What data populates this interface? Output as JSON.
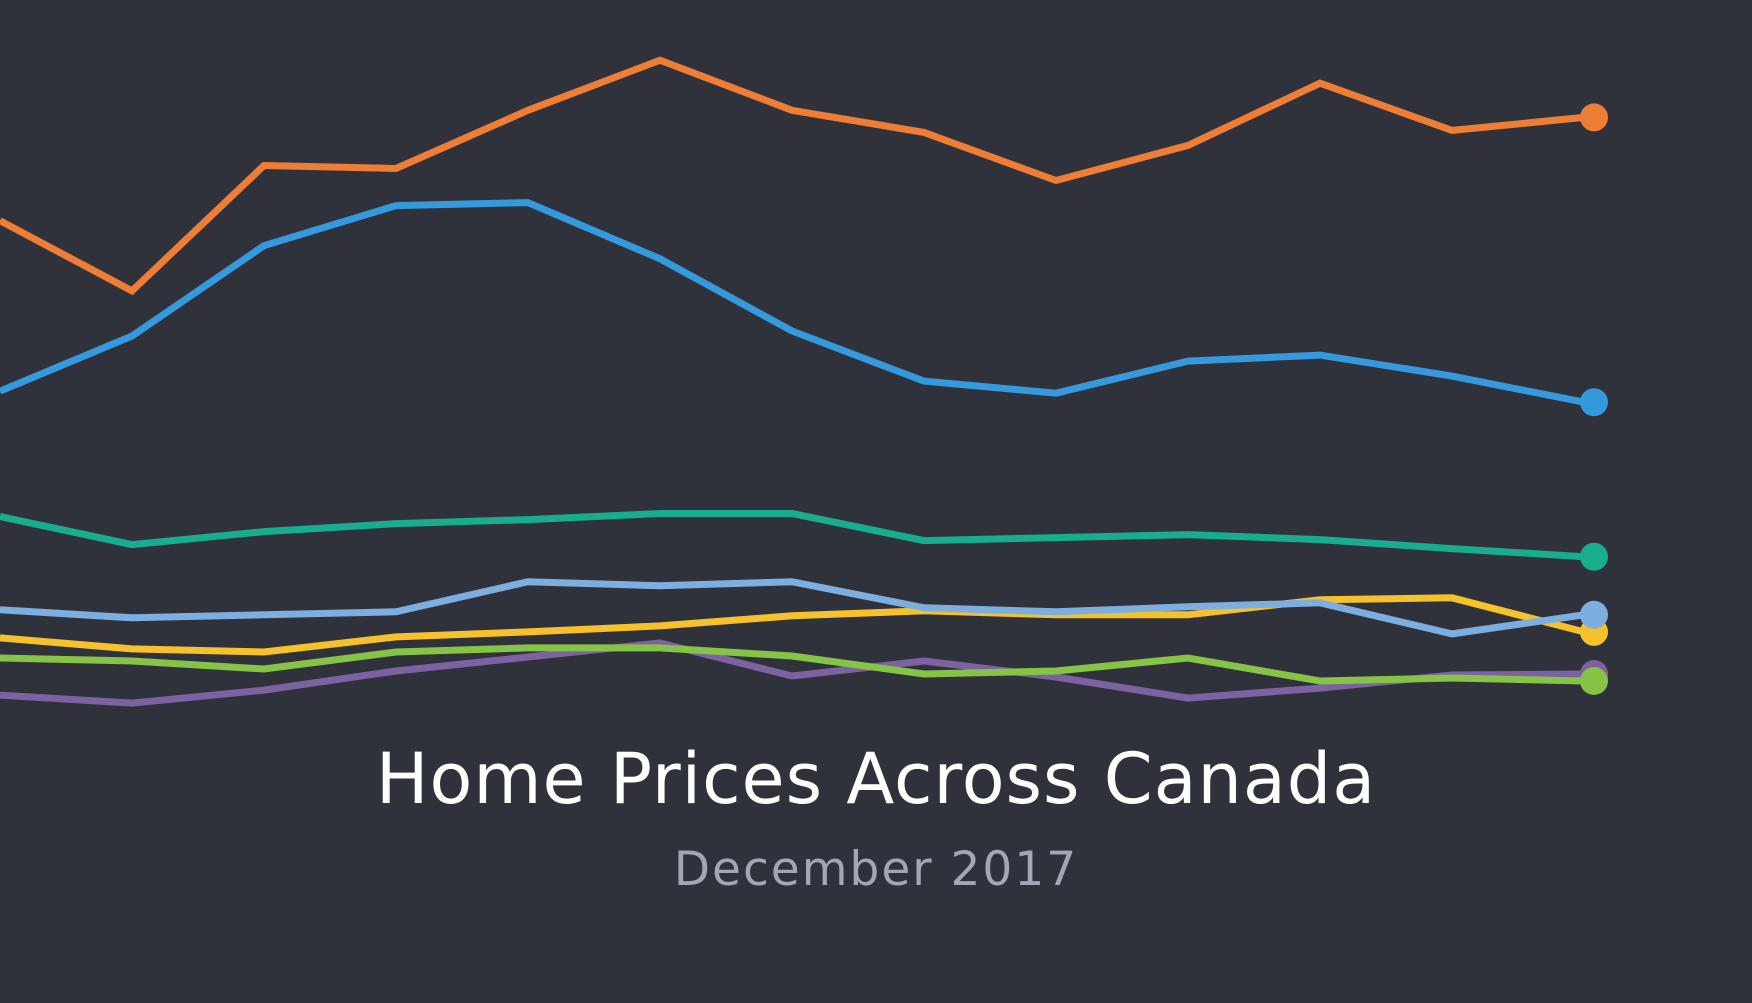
{
  "chart_data": {
    "type": "line",
    "title": "Home Prices Across Canada",
    "subtitle": "December 2017",
    "xlabel": "",
    "ylabel": "",
    "grid": false,
    "legend": "none",
    "x": [
      0,
      1,
      2,
      3,
      4,
      5,
      6,
      7,
      8,
      9,
      10,
      11,
      12
    ],
    "ylim": [
      0,
      100
    ],
    "series": [
      {
        "color": "#ee7d35",
        "values": [
          78,
          71,
          83.5,
          83.2,
          89,
          94,
          89,
          86.8,
          82,
          85.5,
          91.7,
          87,
          88.3
        ]
      },
      {
        "color": "#3599dd",
        "values": [
          61,
          66.5,
          75.5,
          79.5,
          79.8,
          74.2,
          67,
          62,
          60.8,
          64,
          64.6,
          62.5,
          59.9
        ]
      },
      {
        "color": "#17ad8d",
        "values": [
          48.5,
          45.7,
          47,
          47.8,
          48.2,
          48.8,
          48.8,
          46.1,
          46.4,
          46.7,
          46.2,
          45.3,
          44.5
        ]
      },
      {
        "color": "#7daee0",
        "values": [
          39.2,
          38.4,
          38.7,
          39,
          42,
          41.6,
          42,
          39.4,
          39,
          39.5,
          39.9,
          36.8,
          38.7
        ]
      },
      {
        "color": "#f6c22c",
        "values": [
          36.4,
          35.3,
          35,
          36.5,
          37,
          37.6,
          38.6,
          39.1,
          38.7,
          38.7,
          40.2,
          40.4,
          37
        ]
      },
      {
        "color": "#86c347",
        "values": [
          34.4,
          34.1,
          33.3,
          35,
          35.4,
          35.4,
          34.6,
          32.8,
          33.1,
          34.4,
          32.1,
          32.4,
          32.1
        ]
      },
      {
        "color": "#7c62a1",
        "values": [
          30.7,
          29.9,
          31.2,
          33.1,
          34.5,
          35.9,
          32.6,
          34.1,
          32.5,
          30.4,
          31.4,
          32.7,
          32.8
        ]
      }
    ]
  }
}
